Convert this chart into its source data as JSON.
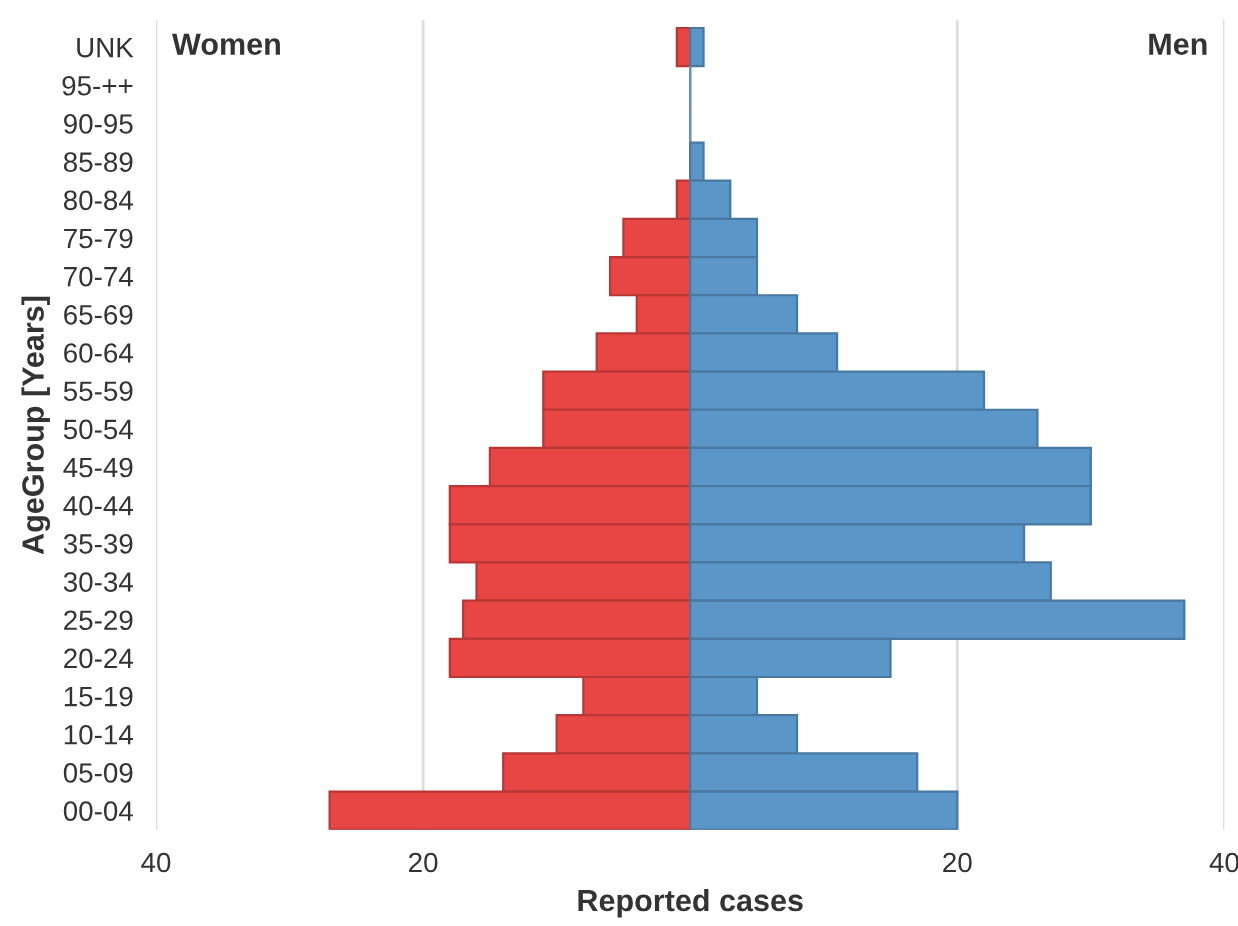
{
  "chart_data": {
    "type": "bar",
    "orientation": "horizontal",
    "stacked": true,
    "annotations": [
      "Women",
      "Men"
    ],
    "xlabel": "Reported cases",
    "ylabel": "AgeGroup [Years]",
    "categories": [
      "UNK",
      "95-++",
      "90-95",
      "85-89",
      "80-84",
      "75-79",
      "70-74",
      "65-69",
      "60-64",
      "55-59",
      "50-54",
      "45-49",
      "40-44",
      "35-39",
      "30-34",
      "25-29",
      "20-24",
      "15-19",
      "10-14",
      "05-09",
      "00-04"
    ],
    "series": [
      {
        "color": "#e84545",
        "values": [
          -1,
          0,
          0,
          0,
          -1,
          -5,
          -6,
          -4,
          -7,
          -11,
          -11,
          -15,
          -18,
          -18,
          -16,
          -17,
          -18,
          -8,
          -10,
          -14,
          -27
        ]
      },
      {
        "color": "#5b96c8",
        "values": [
          1,
          0,
          0,
          1,
          3,
          5,
          5,
          8,
          11,
          22,
          26,
          30,
          30,
          25,
          27,
          37,
          15,
          5,
          8,
          17,
          20
        ]
      }
    ],
    "xlim": [
      -40,
      40
    ],
    "xticks": [
      {
        "value": -40,
        "label": "40"
      },
      {
        "value": -20,
        "label": "20"
      },
      20,
      40
    ],
    "grid": "x",
    "legend": false
  }
}
